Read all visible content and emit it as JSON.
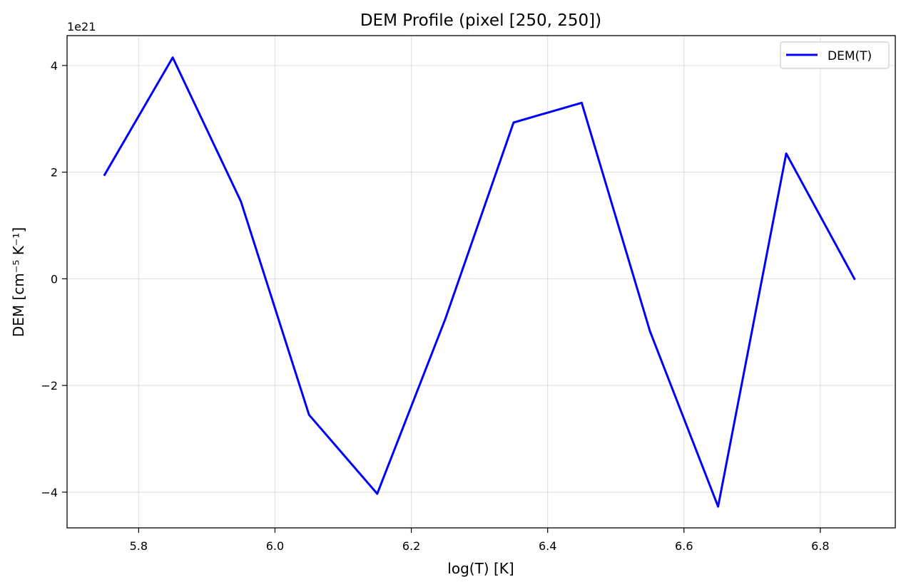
{
  "chart_data": {
    "type": "line",
    "title": "DEM Profile (pixel [250, 250])",
    "xlabel": "log(T) [K]",
    "ylabel": "DEM [cm⁻⁵ K⁻¹]",
    "y_offset_label": "1e21",
    "y_scale_factor": 1e+21,
    "xlim": [
      5.695,
      6.91
    ],
    "ylim": [
      -4.67,
      4.56
    ],
    "x_ticks": [
      5.8,
      6.0,
      6.2,
      6.4,
      6.6,
      6.8
    ],
    "x_tick_labels": [
      "5.8",
      "6.0",
      "6.2",
      "6.4",
      "6.6",
      "6.8"
    ],
    "y_ticks": [
      4,
      2,
      0,
      -2,
      -4
    ],
    "y_tick_labels": [
      "4",
      "2",
      "0",
      "−2",
      "−4"
    ],
    "grid": true,
    "legend_position": "top-right",
    "series": [
      {
        "name": "DEM(T)",
        "color": "#0000ff",
        "x": [
          5.75,
          5.85,
          5.95,
          6.05,
          6.15,
          6.25,
          6.35,
          6.45,
          6.55,
          6.65,
          6.75,
          6.85
        ],
        "y": [
          1.95,
          4.15,
          1.45,
          -2.55,
          -4.03,
          -0.75,
          2.93,
          3.3,
          -0.98,
          -4.27,
          2.35,
          0.0
        ]
      }
    ]
  }
}
